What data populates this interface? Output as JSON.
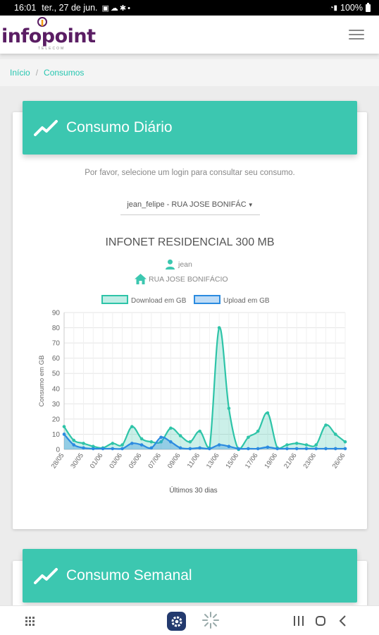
{
  "status_bar": {
    "time": "16:01",
    "date": "ter., 27 de jun.",
    "battery": "100%"
  },
  "header": {
    "logo_text": "infopoint",
    "logo_sub": "TELECOM"
  },
  "breadcrumb": {
    "home": "Início",
    "separator": "/",
    "current": "Consumos"
  },
  "daily_card": {
    "title": "Consumo Diário",
    "prompt": "Por favor, selecione um login para consultar seu consumo.",
    "login_select": "jean_felipe - RUA JOSE BONIFÁC",
    "plan": "INFONET RESIDENCIAL 300 MB",
    "user": "jean",
    "address": "RUA JOSE BONIFÁCIO"
  },
  "weekly_card": {
    "title": "Consumo Semanal"
  },
  "colors": {
    "accent": "#3cc7b0",
    "download": "#2ec4a8",
    "upload": "#2b8be0",
    "brand": "#5a1d63"
  },
  "chart_data": {
    "type": "area",
    "xlabel": "Últimos 30 dias",
    "ylabel": "Consumo em GB",
    "ylim": [
      0,
      90
    ],
    "yticks": [
      0,
      10,
      20,
      30,
      40,
      50,
      60,
      70,
      80,
      90
    ],
    "x": [
      "28/05",
      "29/05",
      "30/05",
      "31/05",
      "01/06",
      "02/06",
      "03/06",
      "04/06",
      "05/06",
      "06/06",
      "07/06",
      "08/06",
      "09/06",
      "10/06",
      "11/06",
      "12/06",
      "13/06",
      "14/06",
      "15/06",
      "16/06",
      "17/06",
      "18/06",
      "19/06",
      "20/06",
      "21/06",
      "22/06",
      "23/06",
      "24/06",
      "25/06",
      "26/06"
    ],
    "x_tick_labels": [
      "28/05",
      "30/05",
      "01/06",
      "03/06",
      "05/06",
      "07/06",
      "09/06",
      "11/06",
      "13/06",
      "15/06",
      "17/06",
      "19/06",
      "21/06",
      "23/06",
      "26/06"
    ],
    "legend_position": "top",
    "grid": true,
    "series": [
      {
        "name": "Download em GB",
        "values": [
          15,
          6,
          4,
          2,
          1,
          4,
          3,
          15,
          7,
          5,
          5,
          14,
          9,
          5,
          12,
          1,
          80,
          27,
          0,
          8,
          12,
          24,
          1,
          3,
          4,
          3,
          3,
          16,
          10,
          5
        ]
      },
      {
        "name": "Upload em GB",
        "values": [
          10,
          3,
          1,
          0.5,
          0.5,
          0.5,
          0.5,
          4,
          3,
          1,
          8,
          5,
          1,
          0.5,
          1,
          0.5,
          3,
          2,
          0.5,
          0.5,
          0.5,
          1.5,
          0.5,
          0.5,
          0.5,
          0.5,
          0.5,
          0.5,
          0.5,
          0.5
        ]
      }
    ]
  }
}
